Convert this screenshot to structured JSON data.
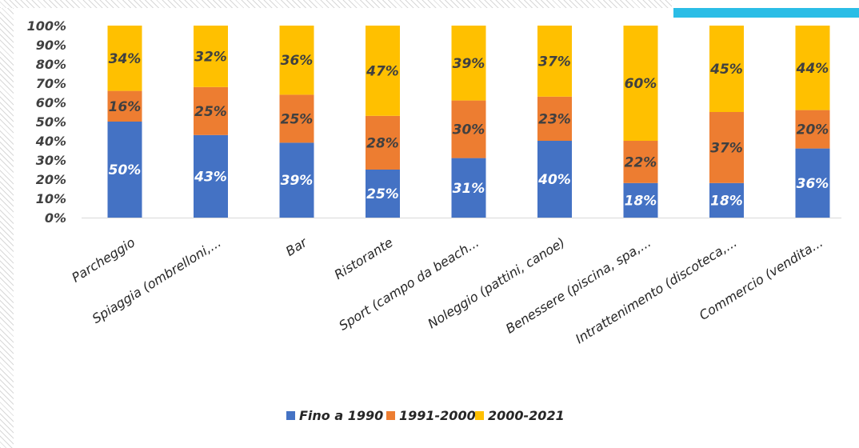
{
  "chart_data": {
    "type": "bar",
    "stacked": true,
    "title": "",
    "xlabel": "",
    "ylabel": "",
    "ylim": [
      0,
      100
    ],
    "yticks": [
      "0%",
      "10%",
      "20%",
      "30%",
      "40%",
      "50%",
      "60%",
      "70%",
      "80%",
      "90%",
      "100%"
    ],
    "categories": [
      "Parcheggio",
      "Spiaggia (ombrelloni,...",
      "Bar",
      "Ristorante",
      "Sport (campo da beach...",
      "Noleggio (pattini, canoe)",
      "Benessere (piscina, spa,...",
      "Intrattenimento (discoteca,...",
      "Commercio (vendita..."
    ],
    "series": [
      {
        "name": "Fino a 1990",
        "color": "#4472c4",
        "label_color": "#ffffff",
        "values": [
          50,
          43,
          39,
          25,
          31,
          40,
          18,
          18,
          36
        ]
      },
      {
        "name": "1991-2000",
        "color": "#ed7d31",
        "label_color": "#404040",
        "values": [
          16,
          25,
          25,
          28,
          30,
          23,
          22,
          37,
          20
        ]
      },
      {
        "name": "2000-2021",
        "color": "#ffc000",
        "label_color": "#404040",
        "values": [
          34,
          32,
          36,
          47,
          39,
          37,
          60,
          45,
          44
        ]
      }
    ],
    "legend_position": "bottom",
    "grid": false
  },
  "colors": {
    "accent": "#2bbde6",
    "axis": "#d9d9d9"
  }
}
